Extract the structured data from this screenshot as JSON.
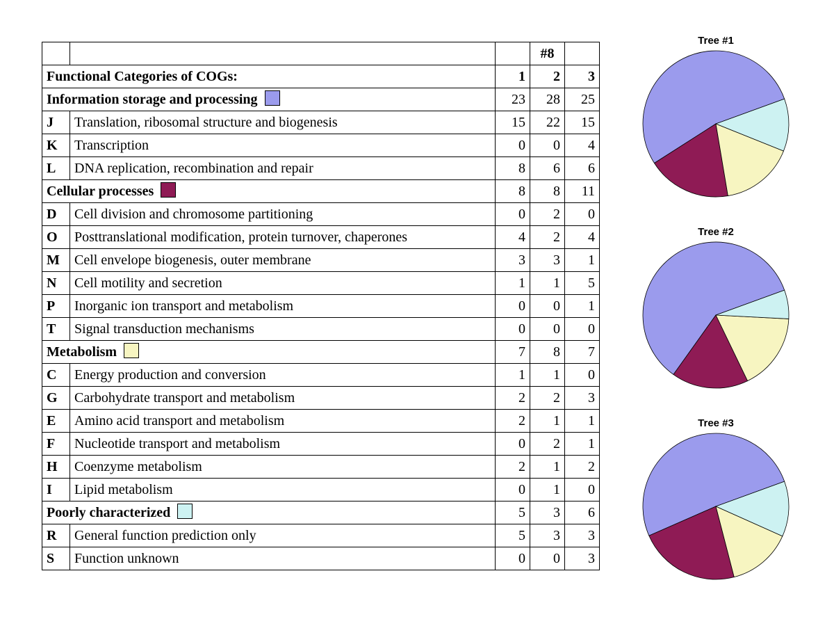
{
  "palette": {
    "info": "#9b9bed",
    "cell": "#8f1b55",
    "metab": "#f7f5c1",
    "poor": "#cdf2f2",
    "stroke": "#000000",
    "bg": "#ffffff"
  },
  "table": {
    "heading": "Functional Categories of COGs:",
    "supercol_label": "#8",
    "col_labels": [
      "1",
      "2",
      "3"
    ],
    "sections": [
      {
        "key": "info",
        "title": "Information storage and processing",
        "swatch": "#9b9bed",
        "totals": [
          23,
          28,
          25
        ],
        "rows": [
          {
            "code": "J",
            "label": "Translation, ribosomal structure and biogenesis",
            "vals": [
              15,
              22,
              15
            ]
          },
          {
            "code": "K",
            "label": "Transcription",
            "vals": [
              0,
              0,
              4
            ]
          },
          {
            "code": "L",
            "label": "DNA replication, recombination and repair",
            "vals": [
              8,
              6,
              6
            ]
          }
        ]
      },
      {
        "key": "cell",
        "title": "Cellular processes",
        "swatch": "#8f1b55",
        "totals": [
          8,
          8,
          11
        ],
        "rows": [
          {
            "code": "D",
            "label": "Cell division and chromosome partitioning",
            "vals": [
              0,
              2,
              0
            ]
          },
          {
            "code": "O",
            "label": "Posttranslational modification, protein turnover, chaperones",
            "vals": [
              4,
              2,
              4
            ]
          },
          {
            "code": "M",
            "label": "Cell envelope biogenesis, outer membrane",
            "vals": [
              3,
              3,
              1
            ]
          },
          {
            "code": "N",
            "label": "Cell motility and secretion",
            "vals": [
              1,
              1,
              5
            ]
          },
          {
            "code": "P",
            "label": "Inorganic ion transport and metabolism",
            "vals": [
              0,
              0,
              1
            ]
          },
          {
            "code": "T",
            "label": "Signal transduction mechanisms",
            "vals": [
              0,
              0,
              0
            ]
          }
        ]
      },
      {
        "key": "metab",
        "title": "Metabolism",
        "swatch": "#f7f5c1",
        "totals": [
          7,
          8,
          7
        ],
        "rows": [
          {
            "code": "C",
            "label": "Energy production and conversion",
            "vals": [
              1,
              1,
              0
            ]
          },
          {
            "code": "G",
            "label": "Carbohydrate transport and metabolism",
            "vals": [
              2,
              2,
              3
            ]
          },
          {
            "code": "E",
            "label": "Amino acid transport and metabolism",
            "vals": [
              2,
              1,
              1
            ]
          },
          {
            "code": "F",
            "label": "Nucleotide transport and metabolism",
            "vals": [
              0,
              2,
              1
            ]
          },
          {
            "code": "H",
            "label": "Coenzyme metabolism",
            "vals": [
              2,
              1,
              2
            ]
          },
          {
            "code": "I",
            "label": "Lipid metabolism",
            "vals": [
              0,
              1,
              0
            ]
          }
        ]
      },
      {
        "key": "poor",
        "title": "Poorly characterized",
        "swatch": "#cdf2f2",
        "totals": [
          5,
          3,
          6
        ],
        "rows": [
          {
            "code": "R",
            "label": "General function prediction only",
            "vals": [
              5,
              3,
              3
            ]
          },
          {
            "code": "S",
            "label": "Function unknown",
            "vals": [
              0,
              0,
              3
            ]
          }
        ]
      }
    ]
  },
  "pies": {
    "radius": 105,
    "stroke": "#000000",
    "stroke_width": 0.8,
    "title_fontsize": 15,
    "order": [
      "info",
      "cell",
      "metab",
      "poor"
    ],
    "colors": {
      "info": "#9b9bed",
      "cell": "#8f1b55",
      "metab": "#f7f5c1",
      "poor": "#cdf2f2"
    },
    "start_angle_deg": -20,
    "direction": "ccw",
    "charts": [
      {
        "title": "Tree #1",
        "values": {
          "info": 23,
          "cell": 8,
          "metab": 7,
          "poor": 5
        }
      },
      {
        "title": "Tree #2",
        "values": {
          "info": 28,
          "cell": 8,
          "metab": 8,
          "poor": 3
        }
      },
      {
        "title": "Tree #3",
        "values": {
          "info": 25,
          "cell": 11,
          "metab": 7,
          "poor": 6
        }
      }
    ]
  }
}
